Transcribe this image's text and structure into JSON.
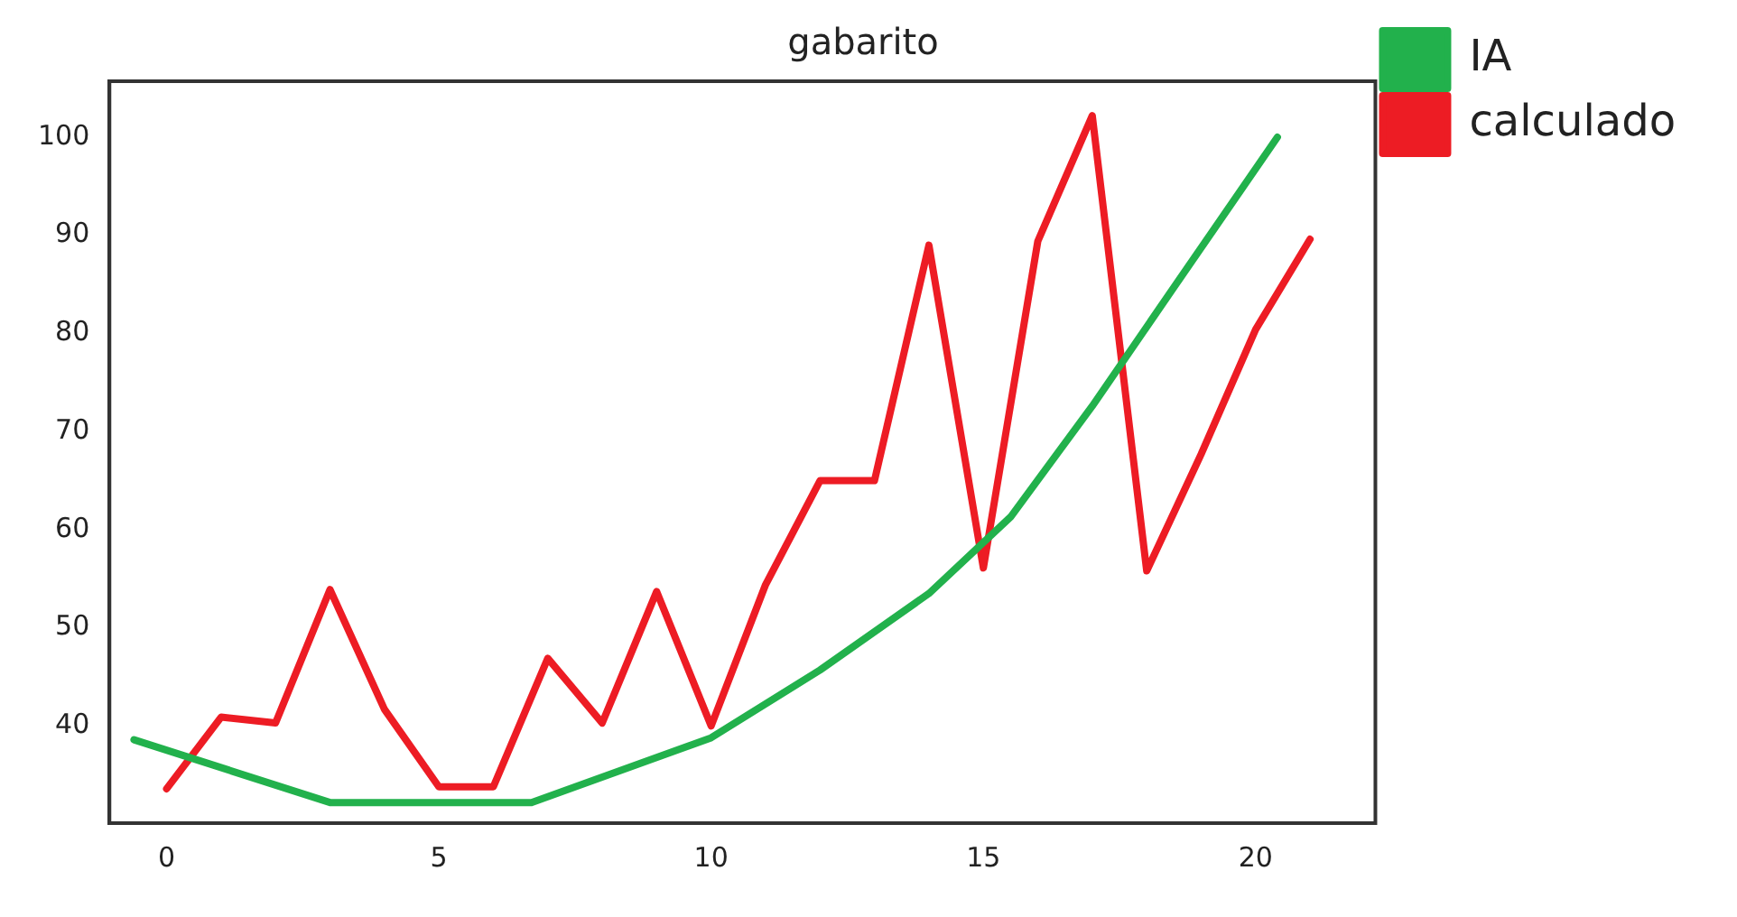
{
  "chart_data": {
    "type": "line",
    "title": "gabarito",
    "marker": "none",
    "line_style": "solid",
    "legend": "right",
    "series": [
      {
        "name": "IA",
        "color": "#22b14c",
        "x": [
          -0.6,
          3,
          6.7,
          10,
          12,
          14,
          15.5,
          17,
          18.5,
          20.4
        ],
        "values": [
          38.6,
          32.2,
          32.2,
          38.8,
          45.7,
          53.5,
          61.3,
          72.6,
          84.7,
          100
        ]
      },
      {
        "name": "calculado",
        "color": "#ed1c24",
        "x": [
          0,
          1,
          2,
          3,
          4,
          5,
          6,
          7,
          8,
          9,
          10,
          11,
          12,
          13,
          14,
          15,
          16,
          17,
          18,
          19,
          20,
          21
        ],
        "values": [
          33.6,
          40.9,
          40.3,
          53.9,
          41.7,
          33.8,
          33.8,
          46.9,
          40.3,
          53.7,
          40,
          54.4,
          65,
          65,
          89,
          56.1,
          89.4,
          102.2,
          55.8,
          67.7,
          80.4,
          89.6
        ]
      }
    ],
    "xlim": [
      -1.05,
      22.2
    ],
    "xticks": [
      0,
      5,
      10,
      15,
      20
    ],
    "ylim": [
      30.1,
      105.7
    ],
    "yticks": [
      40,
      50,
      60,
      70,
      80,
      90,
      100
    ]
  }
}
